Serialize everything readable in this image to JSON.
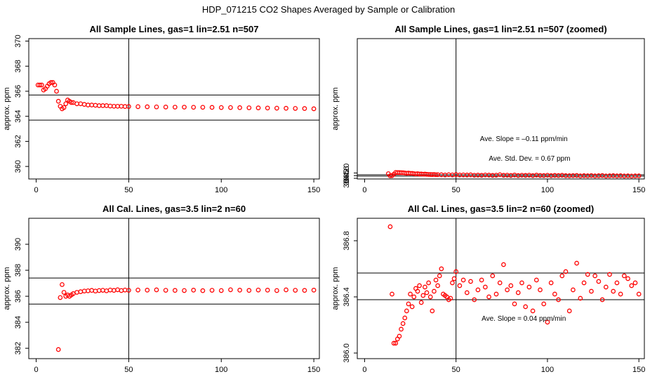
{
  "figure_title": "HDP_071215  CO2 Shapes Averaged by Sample or Calibration",
  "colors": {
    "points": "#ff0000",
    "axes": "#000000",
    "background": "#ffffff"
  },
  "chart_data": [
    {
      "type": "scatter",
      "title": "All Sample Lines, gas=1 lin=2.51 n=507",
      "ylabel": "approx. ppm",
      "xlim": [
        -4,
        153
      ],
      "ylim": [
        359.0,
        370.2
      ],
      "xticks": [
        0,
        50,
        100,
        150
      ],
      "yticks": [
        360,
        362,
        364,
        366,
        368,
        370
      ],
      "hlines": [
        365.7,
        363.7
      ],
      "vline": 50,
      "annotations": [],
      "x": [
        1,
        2,
        3,
        4,
        5,
        6,
        7,
        8,
        9,
        10,
        11,
        12,
        13,
        14,
        15,
        16,
        17,
        18,
        19,
        20,
        22,
        24,
        26,
        28,
        30,
        32,
        34,
        36,
        38,
        40,
        42,
        44,
        46,
        48,
        50,
        55,
        60,
        65,
        70,
        75,
        80,
        85,
        90,
        95,
        100,
        105,
        110,
        115,
        120,
        125,
        130,
        135,
        140,
        145,
        150
      ],
      "y": [
        366.5,
        366.5,
        366.5,
        366.1,
        366.2,
        366.4,
        366.6,
        366.7,
        366.7,
        366.5,
        366.0,
        365.2,
        364.8,
        364.6,
        364.7,
        365.0,
        365.3,
        365.2,
        365.1,
        365.1,
        365.0,
        365.0,
        364.95,
        364.9,
        364.9,
        364.88,
        364.85,
        364.85,
        364.85,
        364.82,
        364.8,
        364.8,
        364.8,
        364.78,
        364.78,
        364.77,
        364.76,
        364.75,
        364.74,
        364.73,
        364.73,
        364.72,
        364.72,
        364.71,
        364.7,
        364.7,
        364.69,
        364.68,
        364.67,
        364.66,
        364.65,
        364.64,
        364.63,
        364.62,
        364.6
      ]
    },
    {
      "type": "scatter",
      "title": "All Sample Lines, gas=1 lin=2.51 n=507 (zoomed)",
      "ylabel": "approx. ppm",
      "xlim": [
        -4,
        153
      ],
      "ylim": [
        364.1,
        385.2
      ],
      "xticks": [
        0,
        50,
        100,
        150
      ],
      "yticks": [
        364.2,
        364.6,
        365.0
      ],
      "ytick_labels": [
        "364.2",
        "364.6",
        "365.0"
      ],
      "hlines": [
        364.73,
        364.53
      ],
      "vline": 50,
      "annotations": [
        "Ave. Slope =  –0.11  ppm/min",
        "Ave. Std. Dev. =  0.67  ppm"
      ],
      "x": [
        13,
        14,
        15,
        16,
        17,
        18,
        19,
        20,
        21,
        22,
        23,
        24,
        25,
        26,
        27,
        28,
        29,
        30,
        31,
        32,
        33,
        34,
        35,
        36,
        37,
        38,
        39,
        40,
        42,
        44,
        46,
        48,
        50,
        52,
        54,
        56,
        58,
        60,
        62,
        64,
        66,
        68,
        70,
        72,
        74,
        76,
        78,
        80,
        82,
        84,
        86,
        88,
        90,
        92,
        94,
        96,
        98,
        100,
        102,
        104,
        106,
        108,
        110,
        112,
        114,
        116,
        118,
        120,
        122,
        124,
        126,
        128,
        130,
        132,
        134,
        136,
        138,
        140,
        142,
        144,
        146,
        148,
        150
      ],
      "y": [
        364.9,
        364.58,
        364.6,
        364.82,
        365.08,
        365.07,
        365.06,
        365.05,
        365.04,
        365.0,
        364.96,
        364.98,
        364.95,
        364.95,
        364.9,
        364.86,
        364.9,
        364.84,
        364.85,
        364.82,
        364.84,
        364.8,
        364.78,
        364.77,
        364.76,
        364.78,
        364.74,
        364.75,
        364.73,
        364.7,
        364.74,
        364.71,
        364.76,
        364.7,
        364.71,
        364.69,
        364.72,
        364.66,
        364.68,
        364.65,
        364.7,
        364.68,
        364.64,
        364.67,
        364.74,
        364.65,
        364.67,
        364.63,
        364.69,
        364.62,
        364.66,
        364.64,
        364.67,
        364.61,
        364.68,
        364.63,
        364.62,
        364.66,
        364.6,
        364.64,
        364.62,
        364.65,
        364.6,
        364.59,
        364.61,
        364.63,
        364.56,
        364.6,
        364.58,
        364.61,
        364.56,
        364.59,
        364.62,
        364.55,
        364.58,
        364.6,
        364.56,
        364.59,
        364.55,
        364.57,
        364.54,
        364.56,
        364.57
      ]
    },
    {
      "type": "scatter",
      "title": "All Cal. Lines, gas=3.5 lin=2 n=60",
      "ylabel": "approx. ppm",
      "xlim": [
        -4,
        153
      ],
      "ylim": [
        381.2,
        392.0
      ],
      "xticks": [
        0,
        50,
        100,
        150
      ],
      "yticks": [
        382,
        384,
        386,
        388,
        390
      ],
      "hlines": [
        387.4,
        385.4
      ],
      "vline": 50,
      "annotations": [],
      "x": [
        12,
        13,
        14,
        15,
        16,
        17,
        18,
        19,
        20,
        22,
        24,
        26,
        28,
        30,
        32,
        34,
        36,
        38,
        40,
        42,
        44,
        46,
        48,
        50,
        55,
        60,
        65,
        70,
        75,
        80,
        85,
        90,
        95,
        100,
        105,
        110,
        115,
        120,
        125,
        130,
        135,
        140,
        145,
        150
      ],
      "y": [
        381.9,
        385.9,
        386.9,
        386.3,
        386.0,
        386.1,
        386.0,
        386.1,
        386.2,
        386.3,
        386.35,
        386.4,
        386.42,
        386.45,
        386.4,
        386.44,
        386.46,
        386.42,
        386.48,
        386.45,
        386.5,
        386.44,
        386.48,
        386.46,
        386.48,
        386.47,
        386.49,
        386.46,
        386.45,
        386.44,
        386.47,
        386.43,
        386.46,
        386.44,
        386.5,
        386.47,
        386.45,
        386.48,
        386.47,
        386.44,
        386.49,
        386.46,
        386.45,
        386.47
      ]
    },
    {
      "type": "scatter",
      "title": "All Cal. Lines, gas=3.5 lin=2 n=60 (zoomed)",
      "ylabel": "approx. ppm",
      "xlim": [
        -4,
        153
      ],
      "ylim": [
        385.96,
        386.96
      ],
      "xticks": [
        0,
        50,
        100,
        150
      ],
      "yticks": [
        386.0,
        386.4,
        386.8
      ],
      "ytick_labels": [
        "386.0",
        "386.4",
        "386.8"
      ],
      "hlines": [
        386.57,
        386.38
      ],
      "vline": 50,
      "annotations": [
        "Ave. Slope =  0.04  ppm/min"
      ],
      "x": [
        14,
        15,
        16,
        17,
        18,
        19,
        20,
        21,
        22,
        23,
        24,
        25,
        26,
        27,
        28,
        29,
        30,
        31,
        32,
        33,
        34,
        35,
        36,
        37,
        38,
        39,
        40,
        41,
        42,
        43,
        44,
        45,
        46,
        47,
        48,
        49,
        50,
        52,
        54,
        56,
        58,
        60,
        62,
        64,
        66,
        68,
        70,
        72,
        74,
        76,
        78,
        80,
        82,
        84,
        86,
        88,
        90,
        92,
        94,
        96,
        98,
        100,
        102,
        104,
        106,
        108,
        110,
        112,
        114,
        116,
        118,
        120,
        122,
        124,
        126,
        128,
        130,
        132,
        134,
        136,
        138,
        140,
        142,
        144,
        146,
        148,
        150
      ],
      "y": [
        386.9,
        386.42,
        386.07,
        386.07,
        386.1,
        386.12,
        386.17,
        386.21,
        386.25,
        386.3,
        386.35,
        386.42,
        386.33,
        386.4,
        386.46,
        386.44,
        386.48,
        386.36,
        386.41,
        386.47,
        386.43,
        386.5,
        386.4,
        386.3,
        386.44,
        386.52,
        386.48,
        386.55,
        386.6,
        386.42,
        386.41,
        386.4,
        386.38,
        386.39,
        386.5,
        386.53,
        386.58,
        386.48,
        386.52,
        386.43,
        386.51,
        386.38,
        386.45,
        386.52,
        386.47,
        386.4,
        386.55,
        386.42,
        386.5,
        386.63,
        386.45,
        386.48,
        386.35,
        386.43,
        386.5,
        386.33,
        386.47,
        386.3,
        386.52,
        386.45,
        386.35,
        386.22,
        386.5,
        386.42,
        386.38,
        386.55,
        386.58,
        386.3,
        386.45,
        386.64,
        386.39,
        386.5,
        386.56,
        386.44,
        386.55,
        386.51,
        386.38,
        386.47,
        386.56,
        386.44,
        386.5,
        386.42,
        386.55,
        386.53,
        386.48,
        386.5,
        386.42
      ]
    }
  ]
}
